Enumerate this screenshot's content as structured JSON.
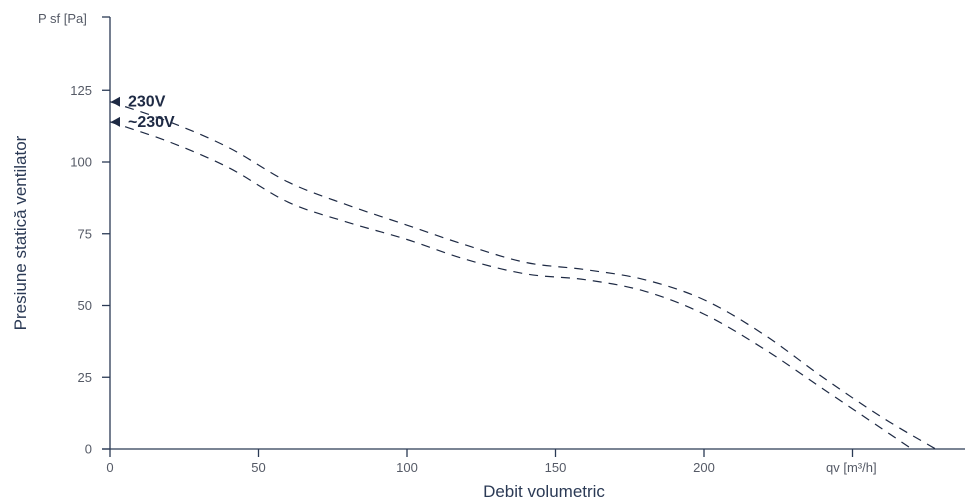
{
  "chart_data": {
    "type": "line",
    "xlabel": "Debit volumetric",
    "ylabel": "Presiune statică ventilator",
    "x_unit_label": "qv [m³/h]",
    "y_unit_label": "P sf [Pa]",
    "xlim": [
      0,
      288
    ],
    "ylim": [
      0,
      150
    ],
    "x_ticks": [
      0,
      50,
      100,
      150,
      200
    ],
    "y_ticks": [
      0,
      25,
      50,
      75,
      100,
      125
    ],
    "grid": false,
    "line_style": "dashed",
    "series": [
      {
        "name": "230V",
        "x": [
          0,
          20,
          40,
          60,
          80,
          100,
          120,
          140,
          160,
          180,
          200,
          220,
          240,
          260,
          278
        ],
        "y": [
          121,
          114,
          105,
          93,
          85,
          78,
          71,
          65,
          62.5,
          59,
          52,
          40,
          25,
          11,
          0
        ]
      },
      {
        "name": "~230V",
        "x": [
          0,
          20,
          40,
          60,
          80,
          100,
          120,
          140,
          160,
          180,
          200,
          220,
          240,
          260,
          270
        ],
        "y": [
          114,
          107,
          98,
          86,
          79,
          73,
          66,
          61,
          59,
          55,
          47,
          35,
          21,
          7,
          0
        ]
      }
    ]
  }
}
